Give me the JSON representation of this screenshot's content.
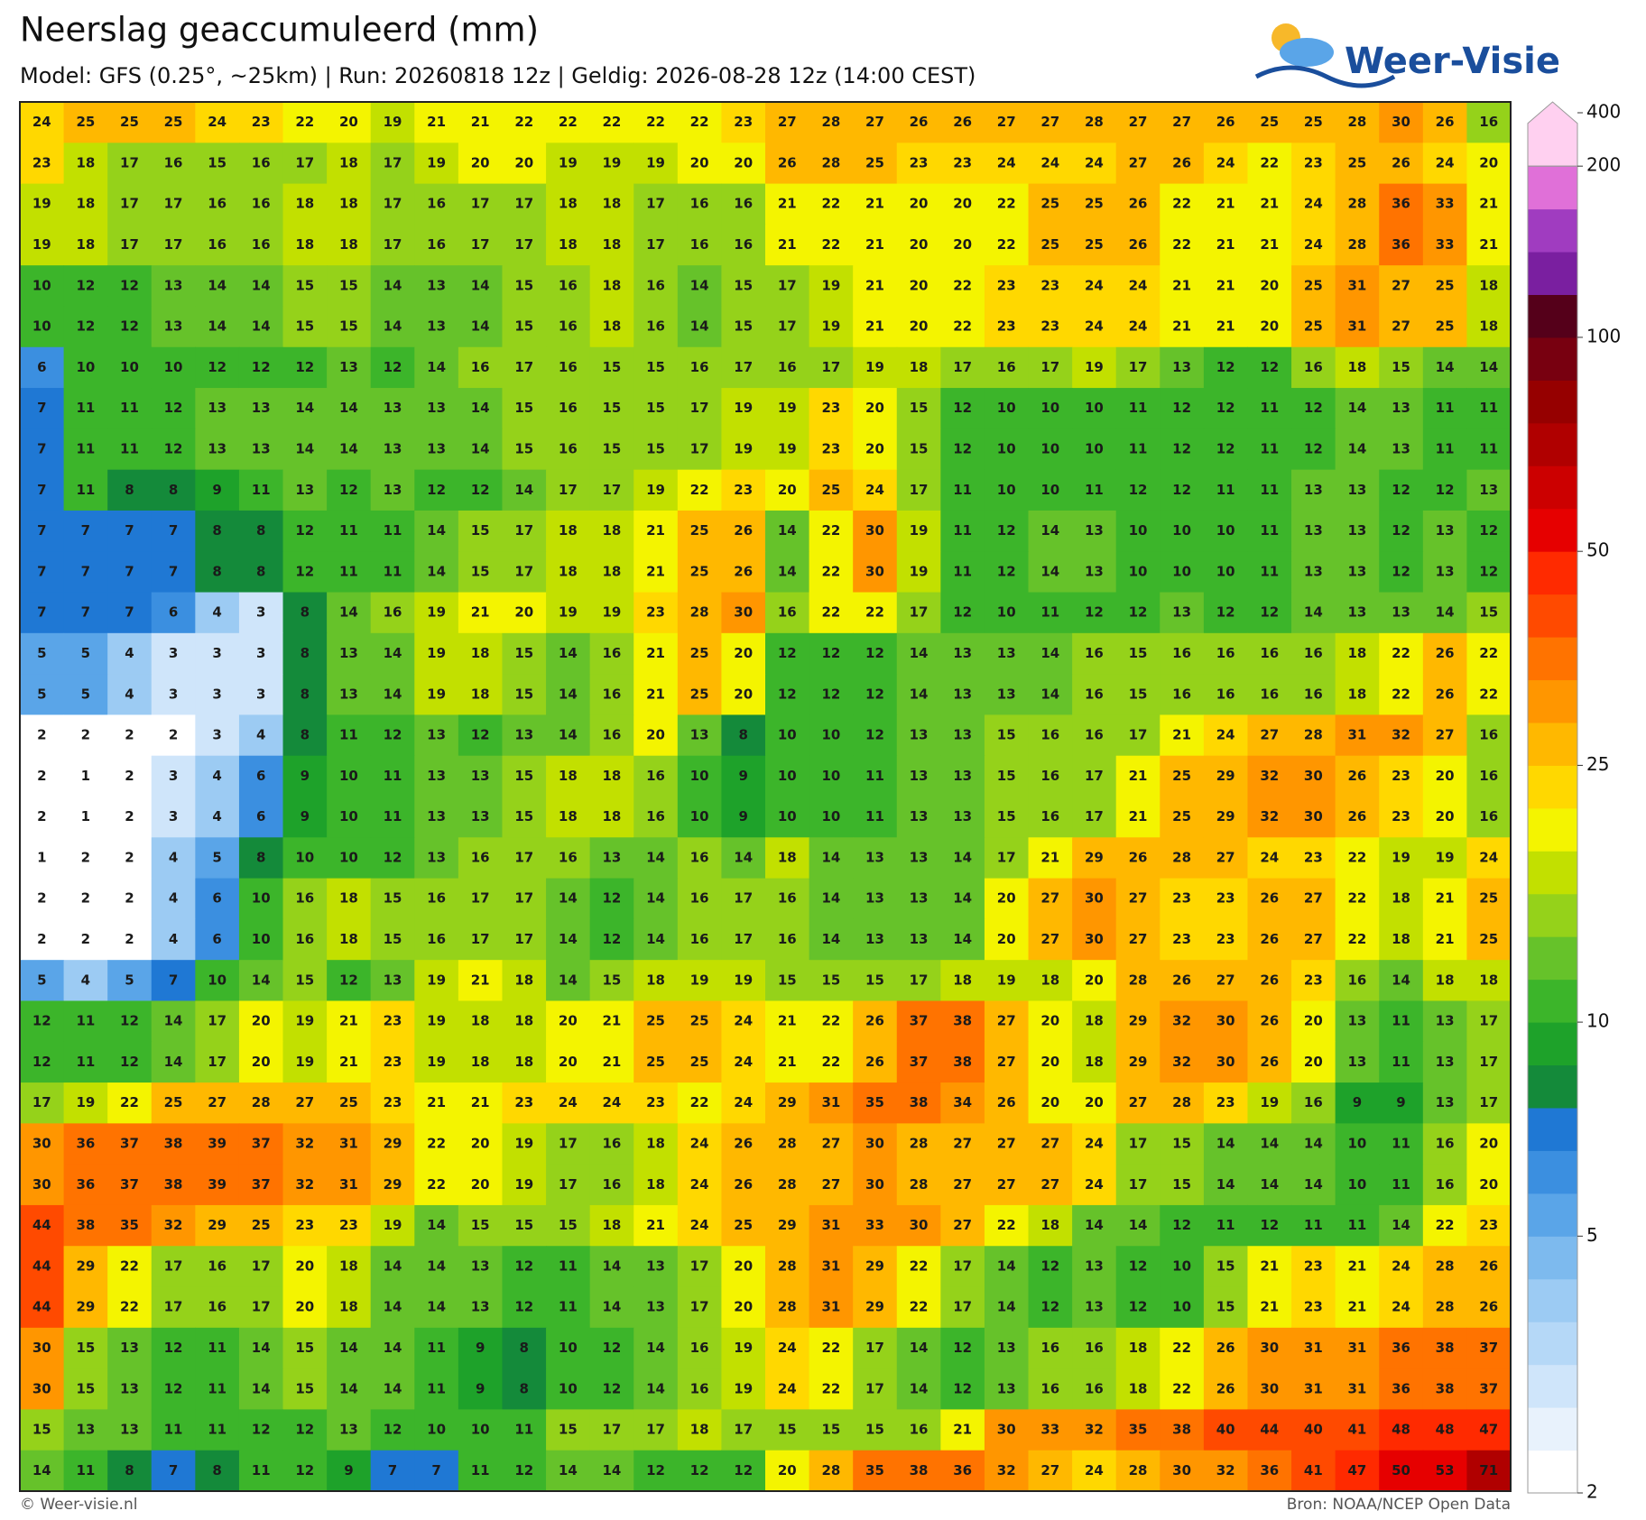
{
  "header": {
    "title": "Neerslag geaccumuleerd (mm)",
    "subtitle": "Model: GFS (0.25°, ~25km)  |  Run: 20260818 12z  |  Geldig: 2026-08-28 12z (14:00 CEST)",
    "logo": "Weer-Visie"
  },
  "grid": [
    [
      24,
      25,
      25,
      25,
      24,
      23,
      22,
      20,
      19,
      21,
      21,
      22,
      22,
      22,
      22,
      22,
      23,
      27,
      28,
      27,
      26,
      26,
      27,
      27,
      28,
      27,
      27,
      26,
      25,
      25,
      28,
      30,
      26,
      16
    ],
    [
      23,
      18,
      17,
      16,
      15,
      16,
      17,
      18,
      17,
      19,
      20,
      20,
      19,
      19,
      19,
      20,
      20,
      26,
      28,
      25,
      23,
      23,
      24,
      24,
      24,
      27,
      26,
      24,
      22,
      23,
      25,
      26,
      24,
      20
    ],
    [
      19,
      18,
      17,
      17,
      16,
      16,
      18,
      18,
      17,
      16,
      17,
      17,
      18,
      18,
      17,
      16,
      16,
      21,
      22,
      21,
      20,
      20,
      22,
      25,
      25,
      26,
      22,
      21,
      21,
      24,
      28,
      36,
      33,
      21
    ],
    [
      19,
      18,
      17,
      17,
      16,
      16,
      18,
      18,
      17,
      16,
      17,
      17,
      18,
      18,
      17,
      16,
      16,
      21,
      22,
      21,
      20,
      20,
      22,
      25,
      25,
      26,
      22,
      21,
      21,
      24,
      28,
      36,
      33,
      21
    ],
    [
      10,
      12,
      12,
      13,
      14,
      14,
      15,
      15,
      14,
      13,
      14,
      15,
      16,
      18,
      16,
      14,
      15,
      17,
      19,
      21,
      20,
      22,
      23,
      23,
      24,
      24,
      21,
      21,
      20,
      25,
      31,
      27,
      25,
      18
    ],
    [
      10,
      12,
      12,
      13,
      14,
      14,
      15,
      15,
      14,
      13,
      14,
      15,
      16,
      18,
      16,
      14,
      15,
      17,
      19,
      21,
      20,
      22,
      23,
      23,
      24,
      24,
      21,
      21,
      20,
      25,
      31,
      27,
      25,
      18
    ],
    [
      6,
      10,
      10,
      10,
      12,
      12,
      12,
      13,
      12,
      14,
      16,
      17,
      16,
      15,
      15,
      16,
      17,
      16,
      17,
      19,
      18,
      17,
      16,
      17,
      19,
      17,
      13,
      12,
      12,
      16,
      18,
      15,
      14,
      14
    ],
    [
      7,
      11,
      11,
      12,
      13,
      13,
      14,
      14,
      13,
      13,
      14,
      15,
      16,
      15,
      15,
      17,
      19,
      19,
      23,
      20,
      15,
      12,
      10,
      10,
      10,
      11,
      12,
      12,
      11,
      12,
      14,
      13,
      11,
      11
    ],
    [
      7,
      11,
      11,
      12,
      13,
      13,
      14,
      14,
      13,
      13,
      14,
      15,
      16,
      15,
      15,
      17,
      19,
      19,
      23,
      20,
      15,
      12,
      10,
      10,
      10,
      11,
      12,
      12,
      11,
      12,
      14,
      13,
      11,
      11
    ],
    [
      7,
      11,
      8,
      8,
      9,
      11,
      13,
      12,
      13,
      12,
      12,
      14,
      17,
      17,
      19,
      22,
      23,
      20,
      25,
      24,
      17,
      11,
      10,
      10,
      11,
      12,
      12,
      11,
      11,
      13,
      13,
      12,
      12,
      13
    ],
    [
      7,
      7,
      7,
      7,
      8,
      8,
      12,
      11,
      11,
      14,
      15,
      17,
      18,
      18,
      21,
      25,
      26,
      14,
      22,
      30,
      19,
      11,
      12,
      14,
      13,
      10,
      10,
      10,
      11,
      13,
      13,
      12,
      13,
      12
    ],
    [
      7,
      7,
      7,
      7,
      8,
      8,
      12,
      11,
      11,
      14,
      15,
      17,
      18,
      18,
      21,
      25,
      26,
      14,
      22,
      30,
      19,
      11,
      12,
      14,
      13,
      10,
      10,
      10,
      11,
      13,
      13,
      12,
      13,
      12
    ],
    [
      7,
      7,
      7,
      6,
      4,
      3,
      8,
      14,
      16,
      19,
      21,
      20,
      19,
      19,
      23,
      28,
      30,
      16,
      22,
      22,
      17,
      12,
      10,
      11,
      12,
      12,
      13,
      12,
      12,
      14,
      13,
      13,
      14,
      15
    ],
    [
      5,
      5,
      4,
      3,
      3,
      3,
      8,
      13,
      14,
      19,
      18,
      15,
      14,
      16,
      21,
      25,
      20,
      12,
      12,
      12,
      14,
      13,
      13,
      14,
      16,
      15,
      16,
      16,
      16,
      16,
      18,
      22,
      26,
      22
    ],
    [
      5,
      5,
      4,
      3,
      3,
      3,
      8,
      13,
      14,
      19,
      18,
      15,
      14,
      16,
      21,
      25,
      20,
      12,
      12,
      12,
      14,
      13,
      13,
      14,
      16,
      15,
      16,
      16,
      16,
      16,
      18,
      22,
      26,
      22
    ],
    [
      2,
      2,
      2,
      2,
      3,
      4,
      8,
      11,
      12,
      13,
      12,
      13,
      14,
      16,
      20,
      13,
      8,
      10,
      10,
      12,
      13,
      13,
      15,
      16,
      16,
      17,
      21,
      24,
      27,
      28,
      31,
      32,
      27,
      16
    ],
    [
      2,
      1,
      2,
      3,
      4,
      6,
      9,
      10,
      11,
      13,
      13,
      15,
      18,
      18,
      16,
      10,
      9,
      10,
      10,
      11,
      13,
      13,
      15,
      16,
      17,
      21,
      25,
      29,
      32,
      30,
      26,
      23,
      20,
      16
    ],
    [
      2,
      1,
      2,
      3,
      4,
      6,
      9,
      10,
      11,
      13,
      13,
      15,
      18,
      18,
      16,
      10,
      9,
      10,
      10,
      11,
      13,
      13,
      15,
      16,
      17,
      21,
      25,
      29,
      32,
      30,
      26,
      23,
      20,
      16
    ],
    [
      1,
      2,
      2,
      4,
      5,
      8,
      10,
      10,
      12,
      13,
      16,
      17,
      16,
      13,
      14,
      16,
      14,
      18,
      14,
      13,
      13,
      14,
      17,
      21,
      29,
      26,
      28,
      27,
      24,
      23,
      22,
      19,
      19,
      24
    ],
    [
      2,
      2,
      2,
      4,
      6,
      10,
      16,
      18,
      15,
      16,
      17,
      17,
      14,
      12,
      14,
      16,
      17,
      16,
      14,
      13,
      13,
      14,
      20,
      27,
      30,
      27,
      23,
      23,
      26,
      27,
      22,
      18,
      21,
      25
    ],
    [
      2,
      2,
      2,
      4,
      6,
      10,
      16,
      18,
      15,
      16,
      17,
      17,
      14,
      12,
      14,
      16,
      17,
      16,
      14,
      13,
      13,
      14,
      20,
      27,
      30,
      27,
      23,
      23,
      26,
      27,
      22,
      18,
      21,
      25
    ],
    [
      5,
      4,
      5,
      7,
      10,
      14,
      15,
      12,
      13,
      19,
      21,
      18,
      14,
      15,
      18,
      19,
      19,
      15,
      15,
      15,
      17,
      18,
      19,
      18,
      20,
      28,
      26,
      27,
      26,
      23,
      16,
      14,
      18,
      18
    ],
    [
      12,
      11,
      12,
      14,
      17,
      20,
      19,
      21,
      23,
      19,
      18,
      18,
      20,
      21,
      25,
      25,
      24,
      21,
      22,
      26,
      37,
      38,
      27,
      20,
      18,
      29,
      32,
      30,
      26,
      20,
      13,
      11,
      13,
      17
    ],
    [
      12,
      11,
      12,
      14,
      17,
      20,
      19,
      21,
      23,
      19,
      18,
      18,
      20,
      21,
      25,
      25,
      24,
      21,
      22,
      26,
      37,
      38,
      27,
      20,
      18,
      29,
      32,
      30,
      26,
      20,
      13,
      11,
      13,
      17
    ],
    [
      17,
      19,
      22,
      25,
      27,
      28,
      27,
      25,
      23,
      21,
      21,
      23,
      24,
      24,
      23,
      22,
      24,
      29,
      31,
      35,
      38,
      34,
      26,
      20,
      20,
      27,
      28,
      23,
      19,
      16,
      9,
      9,
      13,
      17
    ],
    [
      30,
      36,
      37,
      38,
      39,
      37,
      32,
      31,
      29,
      22,
      20,
      19,
      17,
      16,
      18,
      24,
      26,
      28,
      27,
      30,
      28,
      27,
      27,
      27,
      24,
      17,
      15,
      14,
      14,
      14,
      10,
      11,
      16,
      20
    ],
    [
      30,
      36,
      37,
      38,
      39,
      37,
      32,
      31,
      29,
      22,
      20,
      19,
      17,
      16,
      18,
      24,
      26,
      28,
      27,
      30,
      28,
      27,
      27,
      27,
      24,
      17,
      15,
      14,
      14,
      14,
      10,
      11,
      16,
      20
    ],
    [
      44,
      38,
      35,
      32,
      29,
      25,
      23,
      23,
      19,
      14,
      15,
      15,
      15,
      18,
      21,
      24,
      25,
      29,
      31,
      33,
      30,
      27,
      22,
      18,
      14,
      14,
      12,
      11,
      12,
      11,
      11,
      14,
      22,
      23
    ],
    [
      44,
      29,
      22,
      17,
      16,
      17,
      20,
      18,
      14,
      14,
      13,
      12,
      11,
      14,
      13,
      17,
      20,
      28,
      31,
      29,
      22,
      17,
      14,
      12,
      13,
      12,
      10,
      15,
      21,
      23,
      21,
      24,
      28,
      26
    ],
    [
      44,
      29,
      22,
      17,
      16,
      17,
      20,
      18,
      14,
      14,
      13,
      12,
      11,
      14,
      13,
      17,
      20,
      28,
      31,
      29,
      22,
      17,
      14,
      12,
      13,
      12,
      10,
      15,
      21,
      23,
      21,
      24,
      28,
      26
    ],
    [
      30,
      15,
      13,
      12,
      11,
      14,
      15,
      14,
      14,
      11,
      9,
      8,
      10,
      12,
      14,
      16,
      19,
      24,
      22,
      17,
      14,
      12,
      13,
      16,
      16,
      18,
      22,
      26,
      30,
      31,
      31,
      36,
      38,
      37
    ],
    [
      30,
      15,
      13,
      12,
      11,
      14,
      15,
      14,
      14,
      11,
      9,
      8,
      10,
      12,
      14,
      16,
      19,
      24,
      22,
      17,
      14,
      12,
      13,
      16,
      16,
      18,
      22,
      26,
      30,
      31,
      31,
      36,
      38,
      37
    ],
    [
      15,
      13,
      13,
      11,
      11,
      12,
      12,
      13,
      12,
      10,
      10,
      11,
      15,
      17,
      17,
      18,
      17,
      15,
      15,
      15,
      16,
      21,
      30,
      33,
      32,
      35,
      38,
      40,
      44,
      40,
      41,
      48,
      48,
      47
    ],
    [
      14,
      11,
      8,
      7,
      8,
      11,
      12,
      9,
      7,
      7,
      11,
      12,
      14,
      14,
      12,
      12,
      12,
      20,
      28,
      35,
      38,
      36,
      32,
      27,
      24,
      28,
      30,
      32,
      36,
      41,
      47,
      50,
      53,
      71
    ]
  ],
  "colorbar": {
    "levels": [
      2,
      2.5,
      3,
      3.5,
      4,
      4.5,
      5,
      6,
      7,
      8,
      9,
      10,
      12.5,
      15,
      17.5,
      20,
      22.5,
      25,
      30,
      35,
      40,
      45,
      50,
      60,
      70,
      80,
      90,
      100,
      125,
      150,
      175,
      200,
      400
    ],
    "colors": [
      "#ffffff",
      "#e8f2fc",
      "#cfe5fa",
      "#b5d8f7",
      "#9ccbf3",
      "#7dbaee",
      "#5aa5e8",
      "#3b8fe0",
      "#1f78d4",
      "#148a3a",
      "#1ea22a",
      "#3cb52a",
      "#66c22a",
      "#95d21a",
      "#c2e000",
      "#f4f400",
      "#ffd800",
      "#ffb800",
      "#ff9600",
      "#ff7300",
      "#ff4a00",
      "#ff2a00",
      "#e60000",
      "#cc0000",
      "#b00000",
      "#960000",
      "#780010",
      "#55001a",
      "#7a1fa0",
      "#a03cc0",
      "#e070d8",
      "#ffd0f0"
    ],
    "ticks": [
      2,
      5,
      10,
      25,
      50,
      100,
      200,
      400
    ]
  },
  "footer": {
    "left": "© Weer-visie.nl",
    "right": "Bron: NOAA/NCEP Open Data"
  }
}
